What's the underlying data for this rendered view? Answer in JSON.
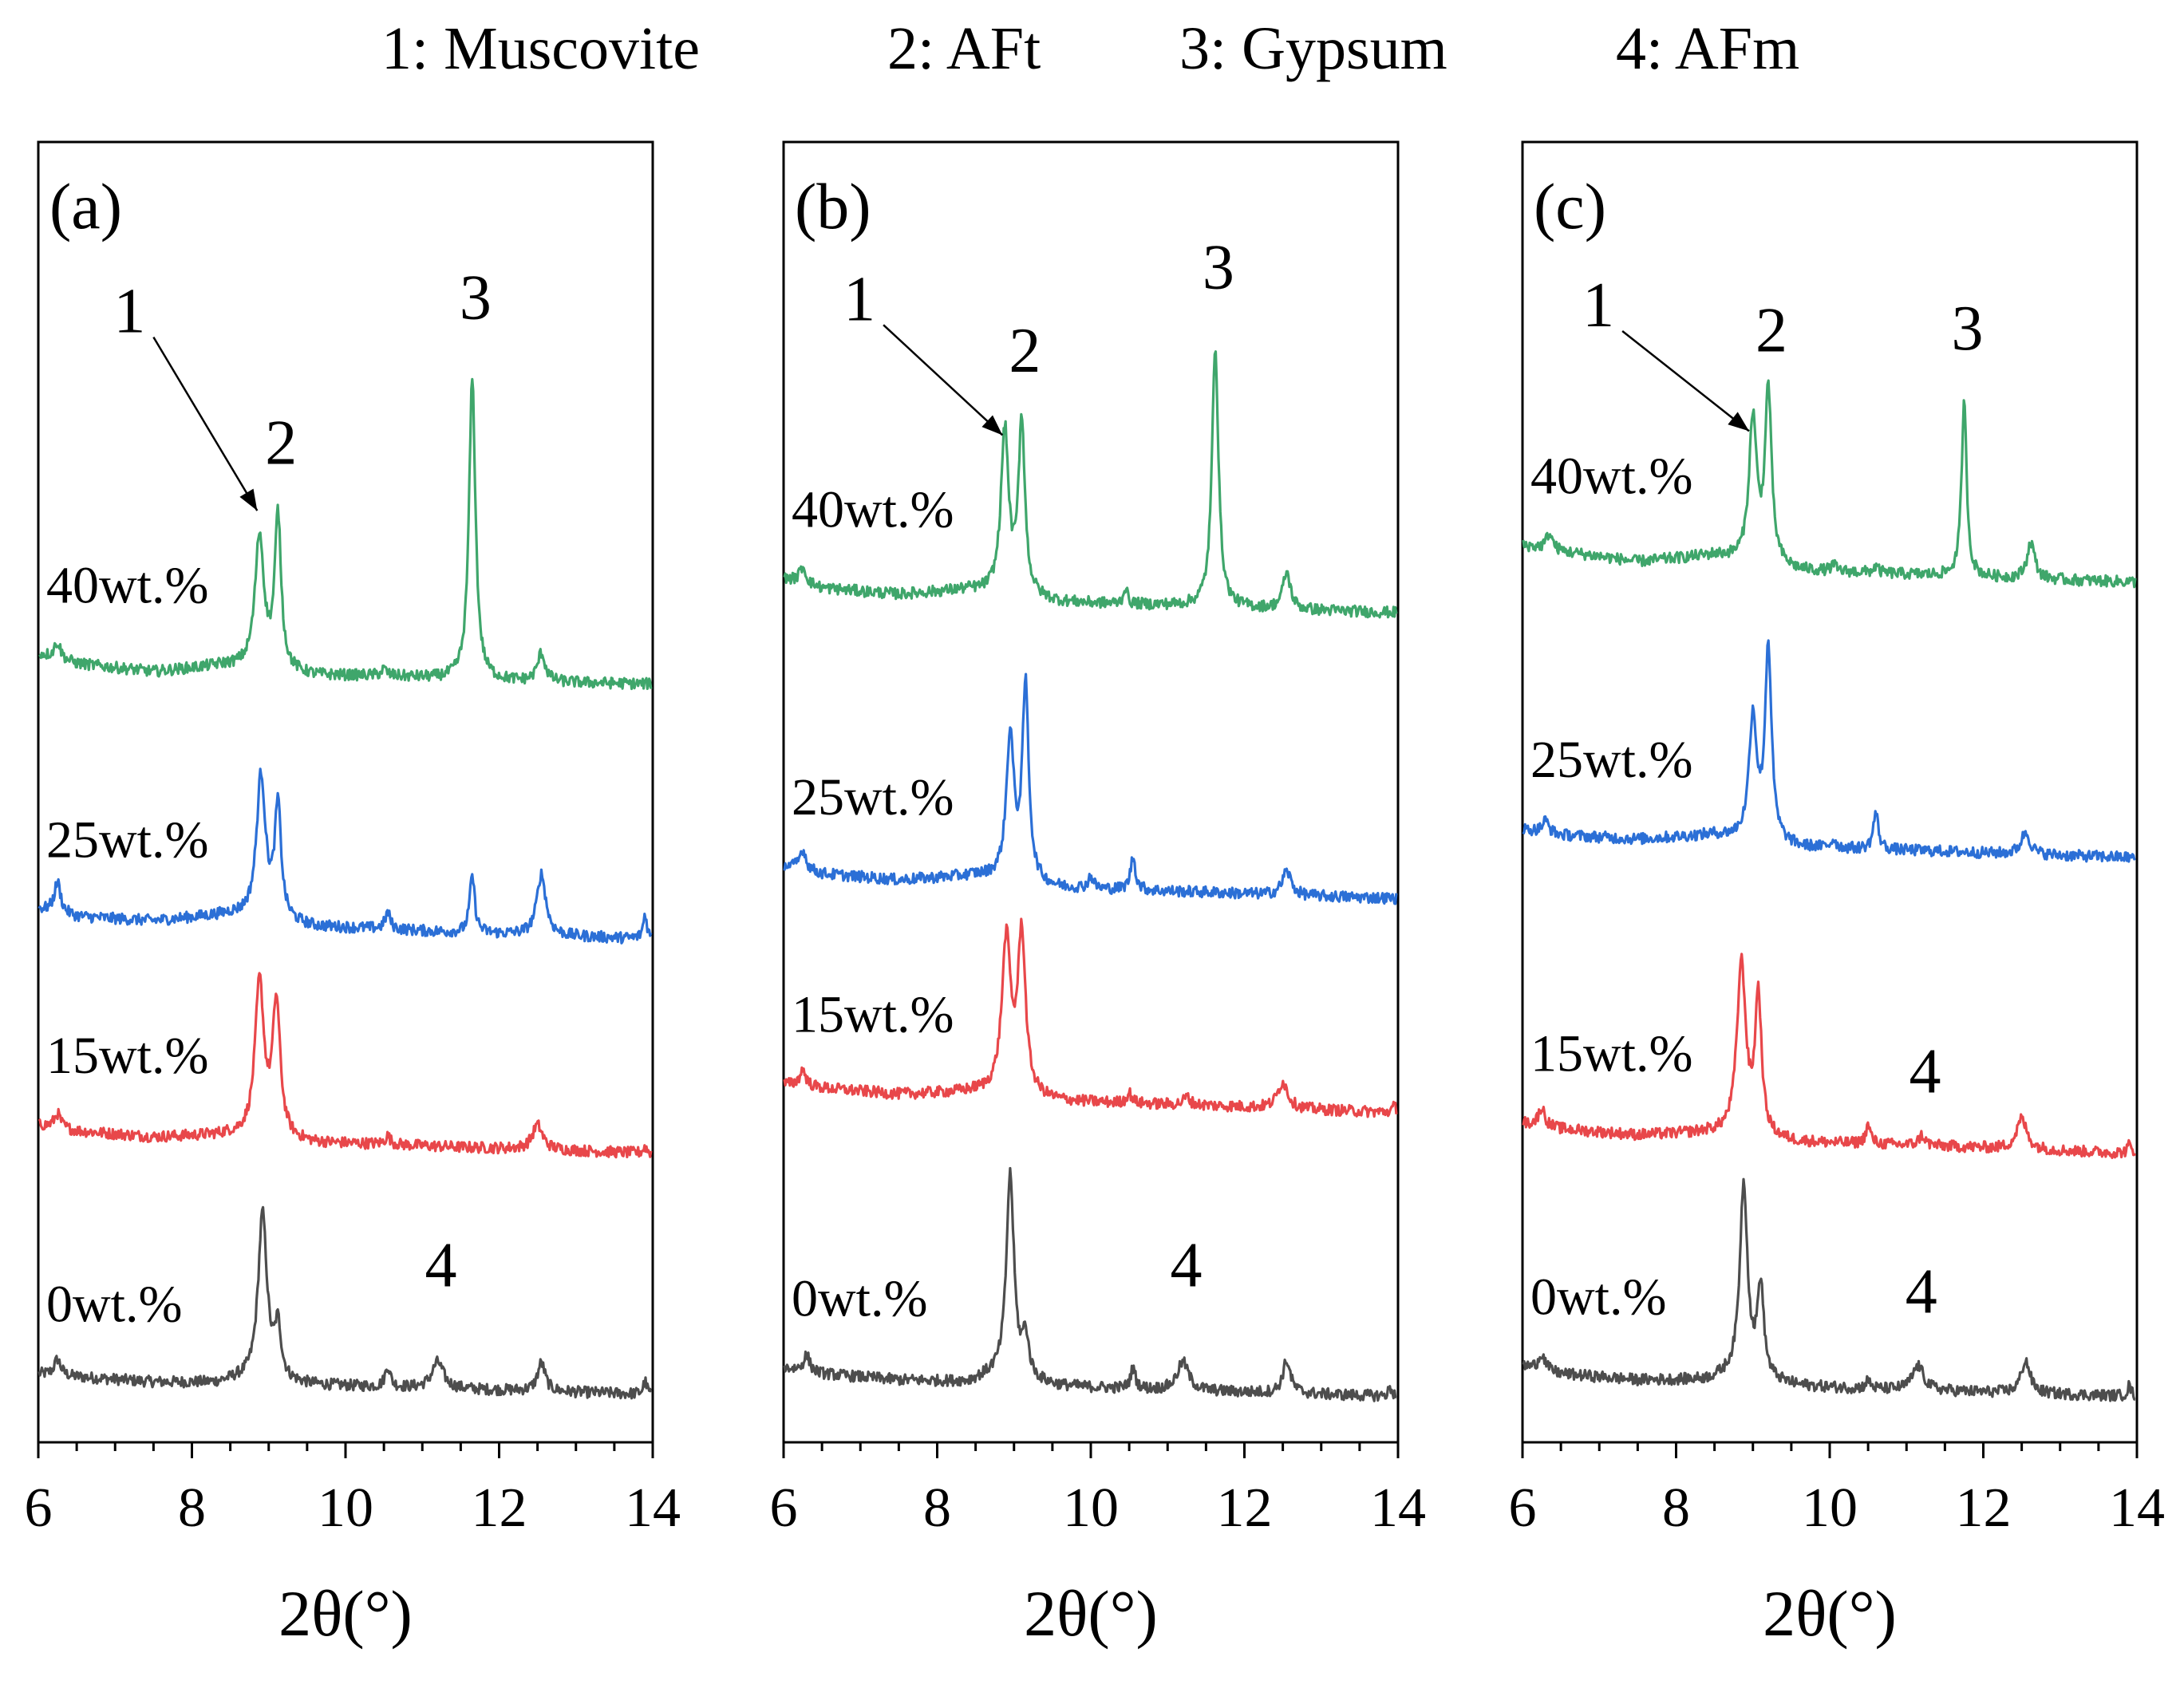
{
  "legend": [
    {
      "id": "1",
      "label": "1: Muscovite"
    },
    {
      "id": "2",
      "label": "2: AFt"
    },
    {
      "id": "3",
      "label": "3: Gypsum"
    },
    {
      "id": "4",
      "label": "4: AFm"
    }
  ],
  "colors": {
    "0wt.%": "#4d4d4d",
    "15wt.%": "#e8474a",
    "25wt.%": "#2b6fd6",
    "40wt.%": "#3fa66b"
  },
  "chart_data": [
    {
      "type": "line",
      "panel": "(a)",
      "xlabel": "2θ(°)",
      "ylabel": "",
      "xlim": [
        6,
        14
      ],
      "xticks": [
        "6",
        "8",
        "10",
        "12",
        "14"
      ],
      "grid": false,
      "series": [
        {
          "name": "0wt.%",
          "baseline": 0,
          "background": [
            [
              6,
              1.2
            ],
            [
              6.5,
              1.05
            ],
            [
              7.5,
              0.8
            ],
            [
              8.3,
              0.75
            ],
            [
              8.6,
              0.9
            ],
            [
              9.6,
              0.65
            ],
            [
              10.5,
              0.55
            ],
            [
              11.5,
              0.45
            ],
            [
              12.5,
              0.35
            ],
            [
              13.5,
              0.25
            ],
            [
              14,
              0.2
            ]
          ],
          "peaks": [
            [
              6.25,
              0.8,
              0.05
            ],
            [
              8.92,
              8.2,
              0.07
            ],
            [
              9.12,
              2.5,
              0.05
            ],
            [
              10.55,
              1.0,
              0.04
            ],
            [
              11.2,
              1.3,
              0.09
            ],
            [
              12.55,
              1.4,
              0.06
            ],
            [
              13.9,
              0.6,
              0.03
            ]
          ],
          "labels": [
            {
              "text": "4",
              "x": 11.2,
              "dy": 5.5
            }
          ]
        },
        {
          "name": "15wt.%",
          "baseline": 12,
          "background": [
            [
              6,
              1.4
            ],
            [
              6.5,
              1.1
            ],
            [
              7.5,
              0.8
            ],
            [
              8.5,
              0.9
            ],
            [
              9.6,
              0.5
            ],
            [
              10.5,
              0.45
            ],
            [
              11.5,
              0.3
            ],
            [
              12.5,
              0.2
            ],
            [
              14,
              0.0
            ]
          ],
          "peaks": [
            [
              6.25,
              0.7,
              0.05
            ],
            [
              8.88,
              7.5,
              0.07
            ],
            [
              9.1,
              6.5,
              0.06
            ],
            [
              10.55,
              0.4,
              0.04
            ],
            [
              12.5,
              1.2,
              0.08
            ],
            [
              13.9,
              0.3,
              0.03
            ]
          ],
          "labels": []
        },
        {
          "name": "25wt.%",
          "baseline": 22.5,
          "background": [
            [
              6,
              1.5
            ],
            [
              6.5,
              1.1
            ],
            [
              7.5,
              0.9
            ],
            [
              8.5,
              1.2
            ],
            [
              9.6,
              0.6
            ],
            [
              10.5,
              0.5
            ],
            [
              11.5,
              0.3
            ],
            [
              12.5,
              0.2
            ],
            [
              14,
              0.0
            ]
          ],
          "peaks": [
            [
              6.25,
              1.5,
              0.05
            ],
            [
              8.9,
              7.0,
              0.07
            ],
            [
              9.12,
              5.5,
              0.05
            ],
            [
              10.55,
              0.8,
              0.04
            ],
            [
              11.65,
              2.8,
              0.04
            ],
            [
              12.55,
              3.0,
              0.07
            ],
            [
              13.9,
              1.2,
              0.03
            ]
          ],
          "labels": []
        },
        {
          "name": "40wt.%",
          "baseline": 35,
          "background": [
            [
              6,
              1.5
            ],
            [
              6.5,
              1.0
            ],
            [
              7.5,
              0.6
            ],
            [
              8.4,
              0.9
            ],
            [
              9.6,
              0.4
            ],
            [
              10.5,
              0.4
            ],
            [
              11.5,
              0.2
            ],
            [
              12.5,
              0.1
            ],
            [
              14,
              0.0
            ]
          ],
          "peaks": [
            [
              6.25,
              0.8,
              0.05
            ],
            [
              8.88,
              6.5,
              0.07
            ],
            [
              9.12,
              7.5,
              0.05
            ],
            [
              10.5,
              0.3,
              0.04
            ],
            [
              11.65,
              14.8,
              0.05
            ],
            [
              12.55,
              1.4,
              0.06
            ]
          ],
          "labels": [
            {
              "text": "3",
              "x": 11.65,
              "dy": 17.9
            },
            {
              "text": "2",
              "x": 9.12,
              "dy": 10.8
            }
          ]
        }
      ],
      "annotations": [
        {
          "text": "1",
          "arrow_from": [
            7.5,
            52.0
          ],
          "arrow_to": [
            8.85,
            43.5
          ]
        }
      ]
    },
    {
      "type": "line",
      "panel": "(b)",
      "xlabel": "2θ(°)",
      "ylabel": "",
      "xlim": [
        6,
        14
      ],
      "xticks": [
        "6",
        "8",
        "10",
        "12",
        "14"
      ],
      "grid": false,
      "series": [
        {
          "name": "0wt.%",
          "baseline": 0,
          "background": [
            [
              6,
              1.5
            ],
            [
              6.5,
              1.2
            ],
            [
              7.5,
              0.9
            ],
            [
              8.4,
              0.8
            ],
            [
              8.7,
              1.1
            ],
            [
              9.6,
              0.6
            ],
            [
              10.5,
              0.45
            ],
            [
              11.5,
              0.35
            ],
            [
              12.5,
              0.25
            ],
            [
              14,
              0.1
            ]
          ],
          "peaks": [
            [
              6.3,
              0.8,
              0.05
            ],
            [
              8.95,
              10.0,
              0.06
            ],
            [
              9.15,
              2.0,
              0.05
            ],
            [
              10.55,
              1.0,
              0.04
            ],
            [
              11.2,
              1.4,
              0.09
            ],
            [
              12.55,
              1.6,
              0.06
            ],
            [
              13.9,
              0.4,
              0.03
            ]
          ],
          "labels": [
            {
              "text": "4",
              "x": 11.2,
              "dy": 5.5
            }
          ]
        },
        {
          "name": "15wt.%",
          "baseline": 14,
          "background": [
            [
              6,
              1.4
            ],
            [
              6.5,
              1.2
            ],
            [
              7.5,
              0.9
            ],
            [
              8.5,
              1.0
            ],
            [
              9.6,
              0.55
            ],
            [
              10.5,
              0.45
            ],
            [
              11.5,
              0.35
            ],
            [
              12.5,
              0.2
            ],
            [
              14,
              0.0
            ]
          ],
          "peaks": [
            [
              6.25,
              0.8,
              0.05
            ],
            [
              8.9,
              7.5,
              0.07
            ],
            [
              9.1,
              7.8,
              0.06
            ],
            [
              10.5,
              0.5,
              0.04
            ],
            [
              11.25,
              0.4,
              0.05
            ],
            [
              12.5,
              1.3,
              0.08
            ],
            [
              13.95,
              0.3,
              0.03
            ]
          ],
          "labels": []
        },
        {
          "name": "25wt.%",
          "baseline": 24.5,
          "background": [
            [
              6,
              1.6
            ],
            [
              6.5,
              1.2
            ],
            [
              7.5,
              0.9
            ],
            [
              8.5,
              1.1
            ],
            [
              9.6,
              0.5
            ],
            [
              10.5,
              0.4
            ],
            [
              11.5,
              0.3
            ],
            [
              12.5,
              0.15
            ],
            [
              14,
              0.0
            ]
          ],
          "peaks": [
            [
              6.25,
              1.0,
              0.05
            ],
            [
              8.95,
              7.0,
              0.06
            ],
            [
              9.15,
              9.5,
              0.05
            ],
            [
              10.0,
              0.6,
              0.04
            ],
            [
              10.55,
              1.6,
              0.04
            ],
            [
              12.55,
              1.2,
              0.07
            ]
          ],
          "labels": []
        },
        {
          "name": "40wt.%",
          "baseline": 38.5,
          "background": [
            [
              6,
              1.7
            ],
            [
              6.5,
              1.2
            ],
            [
              7.5,
              0.9
            ],
            [
              8.4,
              1.1
            ],
            [
              9.6,
              0.5
            ],
            [
              10.5,
              0.4
            ],
            [
              11.5,
              0.3
            ],
            [
              12.5,
              0.15
            ],
            [
              14,
              0.0
            ]
          ],
          "peaks": [
            [
              6.25,
              0.8,
              0.05
            ],
            [
              8.88,
              8.0,
              0.06
            ],
            [
              9.1,
              8.5,
              0.05
            ],
            [
              10.45,
              0.8,
              0.03
            ],
            [
              11.62,
              12.8,
              0.05
            ],
            [
              12.55,
              1.8,
              0.06
            ]
          ],
          "labels": [
            {
              "text": "3",
              "x": 11.62,
              "dy": 15.9
            },
            {
              "text": "2",
              "x": 9.1,
              "dy": 11.8
            }
          ]
        }
      ],
      "annotations": [
        {
          "text": "1",
          "arrow_from": [
            7.3,
            52.6
          ],
          "arrow_to": [
            8.85,
            47.2
          ]
        }
      ]
    },
    {
      "type": "line",
      "panel": "(c)",
      "xlabel": "2θ(°)",
      "ylabel": "",
      "xlim": [
        6,
        14
      ],
      "xticks": [
        "6",
        "8",
        "10",
        "12",
        "14"
      ],
      "grid": false,
      "series": [
        {
          "name": "0wt.%",
          "baseline": 0,
          "background": [
            [
              6,
              1.6
            ],
            [
              6.5,
              1.2
            ],
            [
              7.5,
              0.9
            ],
            [
              8.4,
              0.9
            ],
            [
              8.7,
              1.1
            ],
            [
              9.6,
              0.6
            ],
            [
              10.5,
              0.45
            ],
            [
              11.5,
              0.35
            ],
            [
              12.5,
              0.25
            ],
            [
              14,
              0.1
            ]
          ],
          "peaks": [
            [
              6.25,
              0.8,
              0.05
            ],
            [
              8.88,
              9.5,
              0.06
            ],
            [
              9.1,
              4.5,
              0.05
            ],
            [
              10.5,
              0.4,
              0.04
            ],
            [
              11.15,
              1.2,
              0.09
            ],
            [
              12.55,
              1.6,
              0.07
            ],
            [
              13.9,
              0.5,
              0.03
            ]
          ],
          "labels": [
            {
              "text": "4",
              "x": 11.15,
              "dy": 4.2
            }
          ]
        },
        {
          "name": "15wt.%",
          "baseline": 12,
          "background": [
            [
              6,
              1.5
            ],
            [
              6.5,
              1.2
            ],
            [
              7.5,
              0.9
            ],
            [
              8.4,
              1.0
            ],
            [
              9.6,
              0.55
            ],
            [
              10.5,
              0.45
            ],
            [
              11.5,
              0.35
            ],
            [
              12.5,
              0.2
            ],
            [
              14,
              0.0
            ]
          ],
          "peaks": [
            [
              6.25,
              0.9,
              0.05
            ],
            [
              8.85,
              8.4,
              0.07
            ],
            [
              9.07,
              6.8,
              0.05
            ],
            [
              10.5,
              0.9,
              0.04
            ],
            [
              11.2,
              0.5,
              0.05
            ],
            [
              12.5,
              1.5,
              0.08
            ],
            [
              13.9,
              0.4,
              0.03
            ]
          ],
          "labels": [
            {
              "text": "4",
              "x": 11.2,
              "dy": 3.0
            }
          ]
        },
        {
          "name": "25wt.%",
          "baseline": 26.5,
          "background": [
            [
              6,
              1.4
            ],
            [
              6.5,
              1.1
            ],
            [
              7.5,
              0.9
            ],
            [
              8.5,
              1.1
            ],
            [
              9.6,
              0.5
            ],
            [
              10.5,
              0.4
            ],
            [
              11.5,
              0.3
            ],
            [
              12.5,
              0.15
            ],
            [
              14,
              0.0
            ]
          ],
          "peaks": [
            [
              6.3,
              0.6,
              0.05
            ],
            [
              9.0,
              6.0,
              0.06
            ],
            [
              9.2,
              9.5,
              0.05
            ],
            [
              10.05,
              0.4,
              0.04
            ],
            [
              10.6,
              1.8,
              0.04
            ],
            [
              12.55,
              1.1,
              0.07
            ]
          ],
          "labels": []
        },
        {
          "name": "40wt.%",
          "baseline": 40,
          "background": [
            [
              6,
              1.8
            ],
            [
              6.5,
              1.5
            ],
            [
              7.5,
              1.0
            ],
            [
              8.5,
              1.3
            ],
            [
              9.6,
              0.55
            ],
            [
              10.5,
              0.45
            ],
            [
              11.5,
              0.3
            ],
            [
              12.5,
              0.15
            ],
            [
              14,
              0.0
            ]
          ],
          "peaks": [
            [
              6.35,
              0.8,
              0.05
            ],
            [
              9.0,
              7.0,
              0.06
            ],
            [
              9.2,
              8.5,
              0.05
            ],
            [
              10.05,
              0.3,
              0.04
            ],
            [
              10.6,
              0.3,
              0.04
            ],
            [
              11.75,
              8.5,
              0.04
            ],
            [
              12.62,
              1.8,
              0.06
            ]
          ],
          "labels": [
            {
              "text": "3",
              "x": 11.75,
              "dy": 11.4
            },
            {
              "text": "2",
              "x": 9.2,
              "dy": 11.3
            }
          ]
        }
      ],
      "annotations": [
        {
          "text": "1",
          "arrow_from": [
            7.3,
            52.3
          ],
          "arrow_to": [
            8.95,
            47.4
          ]
        }
      ]
    }
  ]
}
